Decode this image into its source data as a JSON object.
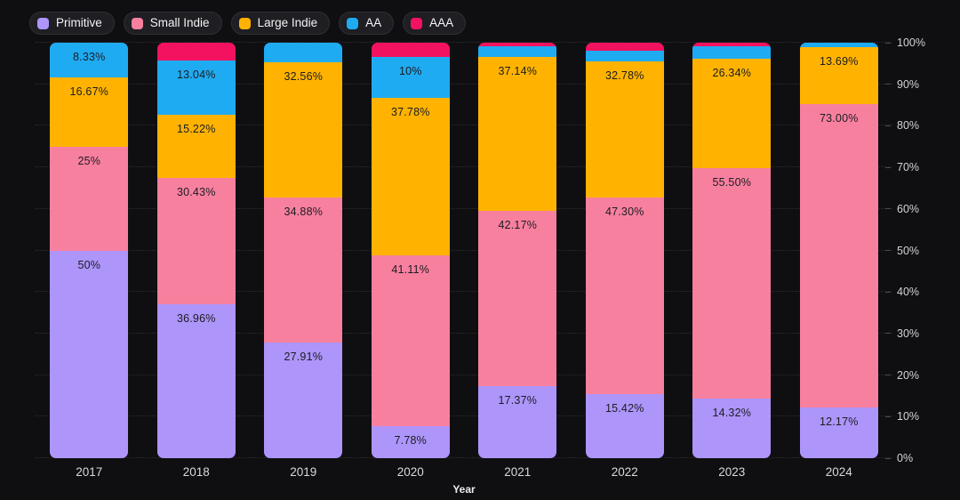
{
  "page": {
    "background": "#0f0f12"
  },
  "legend": {
    "items": [
      {
        "label": "Primitive",
        "color": "#ae95fa"
      },
      {
        "label": "Small Indie",
        "color": "#f8809f"
      },
      {
        "label": "Large Indie",
        "color": "#ffb300"
      },
      {
        "label": "AA",
        "color": "#1fabf2"
      },
      {
        "label": "AAA",
        "color": "#f31260"
      }
    ]
  },
  "chart_data": {
    "type": "bar",
    "variant": "stacked-100-percent",
    "title": "",
    "xlabel": "Year",
    "ylabel": "",
    "ylim": [
      0,
      100
    ],
    "y_ticks": [
      "0%",
      "10%",
      "20%",
      "30%",
      "40%",
      "50%",
      "60%",
      "70%",
      "80%",
      "90%",
      "100%"
    ],
    "grid": "horizontal-dotted",
    "legend_position": "top-left",
    "categories": [
      "2017",
      "2018",
      "2019",
      "2020",
      "2021",
      "2022",
      "2023",
      "2024"
    ],
    "series": [
      {
        "name": "Primitive",
        "color": "#ae95fa",
        "values": [
          50,
          36.96,
          27.91,
          7.78,
          17.37,
          15.42,
          14.32,
          12.17
        ],
        "labels": [
          "50%",
          "36.96%",
          "27.91%",
          "7.78%",
          "17.37%",
          "15.42%",
          "14.32%",
          "12.17%"
        ]
      },
      {
        "name": "Small Indie",
        "color": "#f8809f",
        "values": [
          25,
          30.43,
          34.88,
          41.11,
          42.17,
          47.3,
          55.5,
          73.0
        ],
        "labels": [
          "25%",
          "30.43%",
          "34.88%",
          "41.11%",
          "42.17%",
          "47.30%",
          "55.50%",
          "73.00%"
        ]
      },
      {
        "name": "Large Indie",
        "color": "#ffb300",
        "values": [
          16.67,
          15.22,
          32.56,
          37.78,
          37.14,
          32.78,
          26.34,
          13.69
        ],
        "labels": [
          "16.67%",
          "15.22%",
          "32.56%",
          "37.78%",
          "37.14%",
          "32.78%",
          "26.34%",
          "13.69%"
        ]
      },
      {
        "name": "AA",
        "color": "#1fabf2",
        "values": [
          8.33,
          13.04,
          4.65,
          10,
          2.5,
          2.5,
          3.0,
          1.14
        ],
        "labels": [
          "8.33%",
          "13.04%",
          "",
          "10%",
          "",
          "",
          "",
          ""
        ]
      },
      {
        "name": "AAA",
        "color": "#f31260",
        "values": [
          0,
          4.35,
          0,
          3.33,
          0.82,
          2.0,
          0.84,
          0
        ],
        "labels": [
          "",
          "",
          "",
          "",
          "",
          "",
          "",
          ""
        ]
      }
    ]
  }
}
